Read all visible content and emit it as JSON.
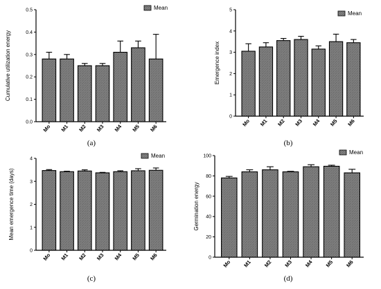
{
  "chart_data": [
    {
      "type": "bar",
      "panel_label": "(a)",
      "ylabel": "Cumulative utilization energy",
      "xlabel": "",
      "categories": [
        "Mo",
        "M1",
        "M2",
        "M3",
        "M4",
        "M5",
        "M6"
      ],
      "series": [
        {
          "name": "Mean",
          "values": [
            0.28,
            0.28,
            0.25,
            0.25,
            0.31,
            0.33,
            0.28
          ]
        }
      ],
      "errors": [
        0.03,
        0.02,
        0.01,
        0.01,
        0.05,
        0.03,
        0.11
      ],
      "ylim": [
        0,
        0.5
      ],
      "yticks": [
        "0.0",
        "0.1",
        "0.2",
        "0.3",
        "0.4",
        "0.5"
      ],
      "legend": "top-right",
      "grid": false
    },
    {
      "type": "bar",
      "panel_label": "(b)",
      "ylabel": "Emergence index",
      "xlabel": "",
      "categories": [
        "Mo",
        "M1",
        "M2",
        "M3",
        "M4",
        "M5",
        "M6"
      ],
      "series": [
        {
          "name": "Mean",
          "values": [
            3.05,
            3.25,
            3.55,
            3.6,
            3.15,
            3.5,
            3.45
          ]
        }
      ],
      "errors": [
        0.35,
        0.2,
        0.1,
        0.15,
        0.15,
        0.35,
        0.15
      ],
      "ylim": [
        0,
        5
      ],
      "yticks": [
        "0",
        "1",
        "2",
        "3",
        "4",
        "5"
      ],
      "legend": "top-right",
      "grid": false
    },
    {
      "type": "bar",
      "panel_label": "(c)",
      "ylabel": "Mean emergence time (days)",
      "xlabel": "",
      "categories": [
        "Mo",
        "M1",
        "M2",
        "M3",
        "M4",
        "M5",
        "M6"
      ],
      "series": [
        {
          "name": "Mean",
          "values": [
            3.47,
            3.42,
            3.45,
            3.37,
            3.42,
            3.46,
            3.48
          ]
        }
      ],
      "errors": [
        0.04,
        0.02,
        0.05,
        0.02,
        0.04,
        0.09,
        0.1
      ],
      "ylim": [
        0,
        4
      ],
      "yticks": [
        "0",
        "1",
        "2",
        "3",
        "4"
      ],
      "legend": "top-right",
      "grid": false
    },
    {
      "type": "bar",
      "panel_label": "(d)",
      "ylabel": "Germination energy",
      "xlabel": "",
      "categories": [
        "Mo",
        "M1",
        "M2",
        "M3",
        "M4",
        "M5",
        "M6"
      ],
      "series": [
        {
          "name": "Mean",
          "values": [
            78,
            84,
            86,
            84,
            89,
            89.5,
            83
          ]
        }
      ],
      "errors": [
        1.5,
        2,
        3,
        0.5,
        2,
        1,
        3.5
      ],
      "ylim": [
        0,
        100
      ],
      "yticks": [
        "0",
        "20",
        "40",
        "60",
        "80",
        "100"
      ],
      "legend": "top-right",
      "grid": false
    }
  ],
  "colors": {
    "bar_fill": "#8c8c8c",
    "bar_stroke": "#000000"
  }
}
